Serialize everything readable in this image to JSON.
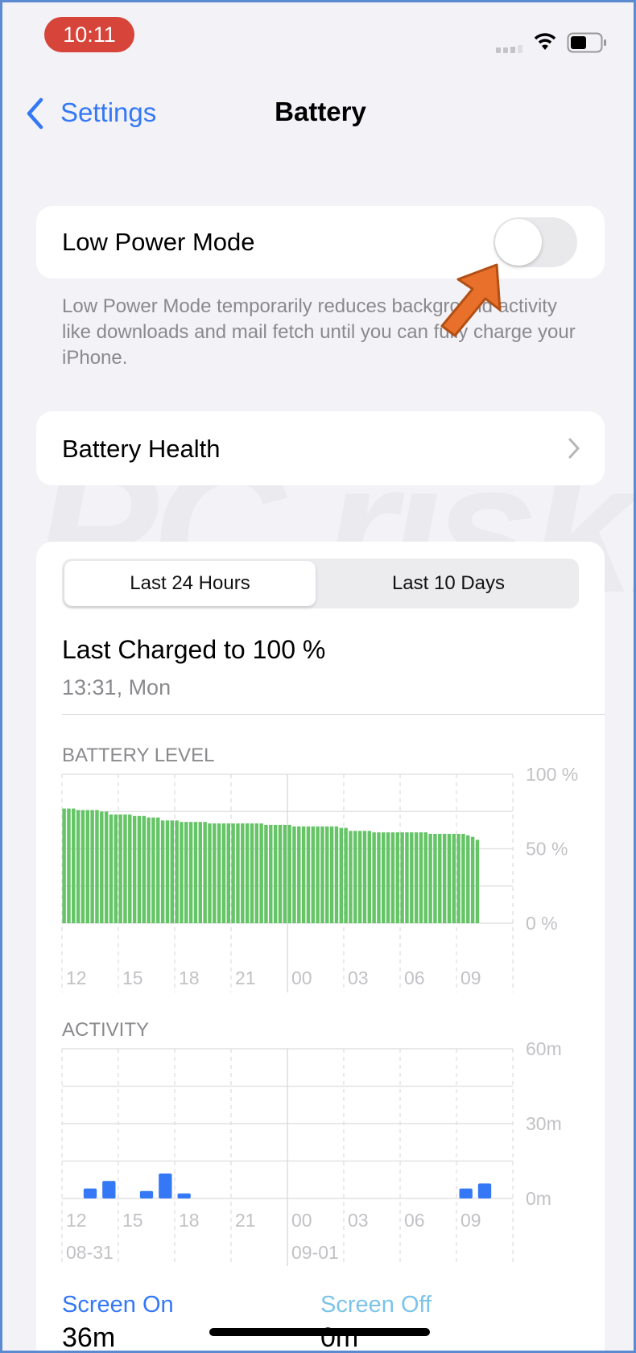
{
  "status_bar": {
    "time": "10:11",
    "icons": [
      "cellular-signal-icon",
      "wifi-icon",
      "battery-icon"
    ]
  },
  "nav": {
    "back_label": "Settings",
    "title": "Battery"
  },
  "low_power": {
    "label": "Low Power Mode",
    "enabled": false,
    "description": "Low Power Mode temporarily reduces background activity like downloads and mail fetch until you can fully charge your iPhone."
  },
  "battery_health": {
    "label": "Battery Health"
  },
  "segments": {
    "options": [
      "Last 24 Hours",
      "Last 10 Days"
    ],
    "selected": "Last 24 Hours"
  },
  "last_charged": {
    "title": "Last Charged to 100 %",
    "time": "13:31, Mon"
  },
  "colors": {
    "accent": "#3478f6",
    "battery_bar": "#65c466",
    "activity_bar": "#3478f6",
    "screen_off": "#7cc3ea",
    "time_pill": "#d6443a",
    "arrow": "#e8702a"
  },
  "watermark": "PC risk.com",
  "chart_data": [
    {
      "type": "bar",
      "title": "BATTERY LEVEL",
      "x_tick_labels": [
        "12",
        "15",
        "18",
        "21",
        "00",
        "03",
        "06",
        "09"
      ],
      "y_tick_labels": [
        "100 %",
        "50 %",
        "0 %"
      ],
      "ylim": [
        0,
        100
      ],
      "interval": "15 min",
      "grid": true,
      "values": [
        77,
        77,
        77,
        76,
        76,
        76,
        76,
        76,
        75,
        75,
        73,
        73,
        73,
        73,
        73,
        72,
        72,
        72,
        71,
        71,
        71,
        69,
        69,
        69,
        69,
        68,
        68,
        68,
        68,
        68,
        68,
        67,
        67,
        67,
        67,
        67,
        67,
        67,
        67,
        67,
        67,
        67,
        67,
        66,
        66,
        66,
        66,
        66,
        66,
        65,
        65,
        65,
        65,
        65,
        65,
        65,
        65,
        65,
        65,
        64,
        64,
        62,
        62,
        62,
        62,
        62,
        61,
        61,
        61,
        61,
        61,
        61,
        61,
        61,
        61,
        61,
        61,
        61,
        60,
        60,
        60,
        60,
        60,
        60,
        60,
        60,
        59,
        58,
        56
      ]
    },
    {
      "type": "bar",
      "title": "ACTIVITY",
      "x_tick_labels": [
        "12",
        "15",
        "18",
        "21",
        "00",
        "03",
        "06",
        "09"
      ],
      "date_labels": [
        "08-31",
        "09-01"
      ],
      "y_tick_labels": [
        "60m",
        "30m",
        "0m"
      ],
      "ylim": [
        0,
        60
      ],
      "unit": "minutes",
      "interval": "1 hour",
      "grid": true,
      "values": [
        0,
        4,
        7,
        0,
        3,
        10,
        2,
        0,
        0,
        0,
        0,
        0,
        0,
        0,
        0,
        0,
        0,
        0,
        0,
        0,
        0,
        4,
        6
      ]
    }
  ],
  "summary": {
    "screen_on_label": "Screen On",
    "screen_on_value": "36m",
    "screen_off_label": "Screen Off",
    "screen_off_value": "0m"
  }
}
